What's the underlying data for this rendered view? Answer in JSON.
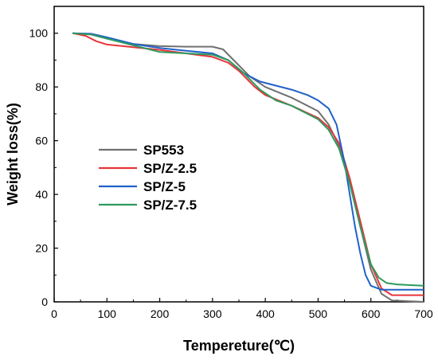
{
  "chart_data": {
    "type": "line",
    "xlabel": "Tempereture(℃)",
    "ylabel": "Weight loss(%)",
    "xlim": [
      0,
      700
    ],
    "ylim": [
      0,
      110
    ],
    "xticks": [
      0,
      100,
      200,
      300,
      400,
      500,
      600,
      700
    ],
    "yticks": [
      0,
      20,
      40,
      60,
      80,
      100
    ],
    "grid": false,
    "legend_position": "center-left",
    "series": [
      {
        "name": "SP553",
        "color": "#707070",
        "points": [
          [
            35,
            100
          ],
          [
            70,
            99.6
          ],
          [
            100,
            98
          ],
          [
            150,
            96
          ],
          [
            200,
            95.2
          ],
          [
            250,
            95
          ],
          [
            300,
            95
          ],
          [
            320,
            94
          ],
          [
            340,
            90
          ],
          [
            370,
            84
          ],
          [
            400,
            80
          ],
          [
            450,
            76
          ],
          [
            500,
            71
          ],
          [
            520,
            66
          ],
          [
            540,
            58
          ],
          [
            560,
            45
          ],
          [
            580,
            28
          ],
          [
            600,
            12
          ],
          [
            620,
            3
          ],
          [
            640,
            0.5
          ],
          [
            700,
            0
          ]
        ]
      },
      {
        "name": "SP/Z-2.5",
        "color": "#e8353b",
        "points": [
          [
            35,
            100
          ],
          [
            60,
            99
          ],
          [
            80,
            97
          ],
          [
            100,
            95.8
          ],
          [
            150,
            94.8
          ],
          [
            200,
            93.8
          ],
          [
            250,
            92.5
          ],
          [
            300,
            91.2
          ],
          [
            330,
            89
          ],
          [
            350,
            86
          ],
          [
            380,
            80
          ],
          [
            400,
            77
          ],
          [
            450,
            73
          ],
          [
            500,
            68.5
          ],
          [
            520,
            65
          ],
          [
            540,
            59
          ],
          [
            560,
            46
          ],
          [
            580,
            30
          ],
          [
            600,
            14
          ],
          [
            620,
            5
          ],
          [
            640,
            2.5
          ],
          [
            700,
            2.5
          ]
        ]
      },
      {
        "name": "SP/Z-5",
        "color": "#2061c9",
        "points": [
          [
            35,
            100
          ],
          [
            70,
            99.8
          ],
          [
            100,
            98.5
          ],
          [
            150,
            96
          ],
          [
            200,
            94.5
          ],
          [
            250,
            93.5
          ],
          [
            300,
            92.5
          ],
          [
            330,
            90
          ],
          [
            360,
            85
          ],
          [
            390,
            82
          ],
          [
            420,
            80.5
          ],
          [
            450,
            79
          ],
          [
            480,
            77
          ],
          [
            500,
            75
          ],
          [
            520,
            72
          ],
          [
            535,
            66
          ],
          [
            550,
            52
          ],
          [
            560,
            40
          ],
          [
            570,
            28
          ],
          [
            580,
            18
          ],
          [
            590,
            10
          ],
          [
            600,
            6
          ],
          [
            620,
            4.5
          ],
          [
            700,
            4.5
          ]
        ]
      },
      {
        "name": "SP/Z-7.5",
        "color": "#2e9a5e",
        "points": [
          [
            35,
            100
          ],
          [
            70,
            99.5
          ],
          [
            100,
            98
          ],
          [
            150,
            95.5
          ],
          [
            200,
            93
          ],
          [
            250,
            92.5
          ],
          [
            300,
            92
          ],
          [
            330,
            90
          ],
          [
            360,
            85
          ],
          [
            390,
            79
          ],
          [
            420,
            75
          ],
          [
            450,
            73
          ],
          [
            500,
            68
          ],
          [
            520,
            64
          ],
          [
            540,
            57
          ],
          [
            560,
            44
          ],
          [
            580,
            28
          ],
          [
            600,
            14
          ],
          [
            615,
            9
          ],
          [
            630,
            7
          ],
          [
            650,
            6.5
          ],
          [
            700,
            6
          ]
        ]
      }
    ]
  }
}
